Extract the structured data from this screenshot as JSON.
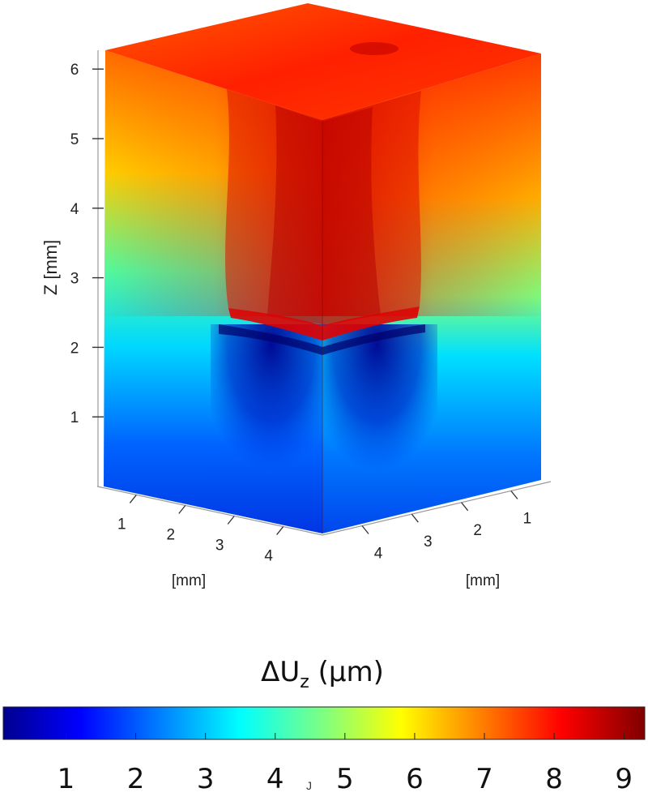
{
  "chart_data": {
    "type": "heatmap",
    "variant": "3d-box-surface",
    "colormap": "jet",
    "z_axis": {
      "label": "Z [mm]",
      "ticks": [
        1,
        2,
        3,
        4,
        5,
        6
      ],
      "range": [
        0,
        6.2
      ]
    },
    "x_axis_left": {
      "label": "[mm]",
      "ticks": [
        1,
        2,
        3,
        4
      ]
    },
    "y_axis_right": {
      "label": "[mm]",
      "ticks": [
        1,
        2,
        3,
        4
      ]
    },
    "colorbar": {
      "title": "ΔU",
      "title_subscript": "z",
      "title_unit": "(µm)",
      "ticks": [
        1,
        2,
        3,
        4,
        5,
        6,
        7,
        8,
        9
      ],
      "range": [
        0.1,
        9.3
      ],
      "orientation": "horizontal",
      "stray_mark": "J"
    },
    "field": {
      "quantity": "ΔU_z (µm)",
      "top_value_max": 9.0,
      "bottom_value_min": 1.0,
      "transition_height_mm": 2.3,
      "description_note": "high displacement above ~2.3 mm, low below"
    }
  }
}
